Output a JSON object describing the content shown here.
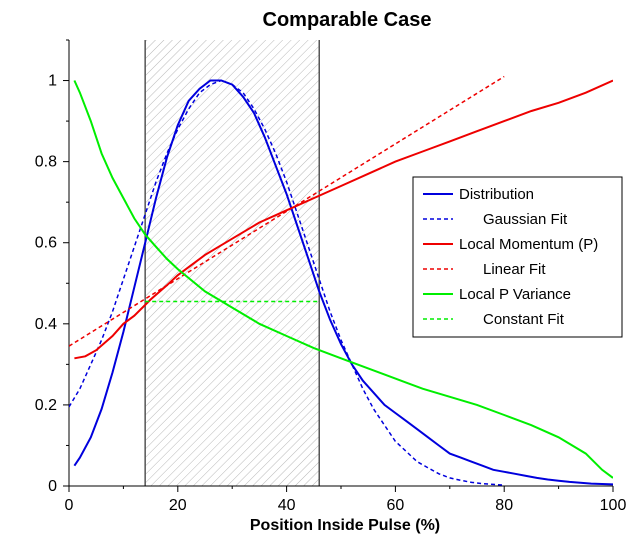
{
  "chart_data": {
    "type": "line",
    "title": "Comparable Case",
    "xlabel": "Position Inside Pulse (%)",
    "ylabel": "",
    "xlim": [
      0,
      100
    ],
    "ylim": [
      0,
      1.1
    ],
    "xticks": [
      "0",
      "20",
      "40",
      "60",
      "80",
      "100"
    ],
    "yticks": [
      "0",
      "0.2",
      "0.4",
      "0.6",
      "0.8",
      "1"
    ],
    "grid": false,
    "legend_position": "right",
    "shaded_region": {
      "x_start": 14,
      "x_end": 46,
      "pattern": "diagonal hatch"
    },
    "series": [
      {
        "name": "Distribution",
        "color": "#0000dd",
        "style": "solid",
        "x": [
          1,
          2,
          4,
          6,
          8,
          10,
          12,
          14,
          16,
          18,
          20,
          22,
          24,
          26,
          28,
          30,
          32,
          34,
          36,
          38,
          40,
          42,
          44,
          46,
          48,
          50,
          52,
          54,
          56,
          58,
          60,
          62,
          64,
          66,
          68,
          70,
          72,
          74,
          76,
          78,
          80,
          82,
          84,
          86,
          88,
          90,
          92,
          94,
          96,
          98,
          100
        ],
        "y": [
          0.05,
          0.07,
          0.12,
          0.19,
          0.28,
          0.38,
          0.49,
          0.6,
          0.71,
          0.81,
          0.89,
          0.95,
          0.98,
          1.0,
          1.0,
          0.99,
          0.96,
          0.92,
          0.86,
          0.79,
          0.72,
          0.64,
          0.56,
          0.48,
          0.41,
          0.35,
          0.3,
          0.26,
          0.23,
          0.2,
          0.18,
          0.16,
          0.14,
          0.12,
          0.1,
          0.08,
          0.07,
          0.06,
          0.05,
          0.04,
          0.035,
          0.03,
          0.025,
          0.02,
          0.016,
          0.013,
          0.01,
          0.008,
          0.006,
          0.005,
          0.004
        ]
      },
      {
        "name": "Gaussian Fit",
        "color": "#0000dd",
        "style": "dashed",
        "x": [
          0,
          2,
          4,
          6,
          8,
          10,
          12,
          14,
          16,
          18,
          20,
          22,
          24,
          26,
          28,
          30,
          32,
          34,
          36,
          38,
          40,
          42,
          44,
          46,
          48,
          50,
          52,
          54,
          56,
          58,
          60,
          62,
          64,
          66,
          68,
          70,
          72,
          74,
          76,
          78,
          80
        ],
        "y": [
          0.195,
          0.24,
          0.3,
          0.36,
          0.43,
          0.51,
          0.59,
          0.67,
          0.75,
          0.82,
          0.88,
          0.93,
          0.97,
          0.99,
          1.0,
          0.99,
          0.97,
          0.93,
          0.88,
          0.82,
          0.75,
          0.67,
          0.59,
          0.51,
          0.43,
          0.36,
          0.3,
          0.24,
          0.19,
          0.15,
          0.11,
          0.085,
          0.06,
          0.045,
          0.03,
          0.02,
          0.014,
          0.009,
          0.006,
          0.004,
          0.002
        ]
      },
      {
        "name": "Local Momentum (P)",
        "color": "#ee0000",
        "style": "solid",
        "x": [
          1,
          3,
          5,
          8,
          10,
          12,
          15,
          18,
          20,
          25,
          30,
          35,
          40,
          45,
          50,
          55,
          60,
          65,
          70,
          75,
          80,
          85,
          90,
          95,
          100
        ],
        "y": [
          0.315,
          0.32,
          0.335,
          0.37,
          0.4,
          0.42,
          0.46,
          0.495,
          0.52,
          0.57,
          0.61,
          0.65,
          0.68,
          0.71,
          0.74,
          0.77,
          0.8,
          0.825,
          0.85,
          0.875,
          0.9,
          0.925,
          0.945,
          0.97,
          1.0
        ]
      },
      {
        "name": "Linear Fit",
        "color": "#ee0000",
        "style": "dashed",
        "x": [
          0,
          80
        ],
        "y": [
          0.345,
          1.01
        ]
      },
      {
        "name": "Local P Variance",
        "color": "#00ee00",
        "style": "solid",
        "x": [
          1,
          2,
          4,
          6,
          8,
          10,
          12,
          14,
          16,
          18,
          20,
          25,
          30,
          35,
          40,
          45,
          50,
          55,
          60,
          65,
          70,
          75,
          80,
          85,
          90,
          95,
          98,
          100
        ],
        "y": [
          1.0,
          0.97,
          0.9,
          0.82,
          0.76,
          0.71,
          0.66,
          0.62,
          0.59,
          0.56,
          0.535,
          0.48,
          0.44,
          0.4,
          0.37,
          0.34,
          0.315,
          0.29,
          0.265,
          0.24,
          0.22,
          0.2,
          0.175,
          0.15,
          0.12,
          0.08,
          0.04,
          0.02
        ]
      },
      {
        "name": "Constant Fit",
        "color": "#00ee00",
        "style": "dashed",
        "x": [
          14,
          46
        ],
        "y": [
          0.455,
          0.455
        ]
      }
    ]
  }
}
